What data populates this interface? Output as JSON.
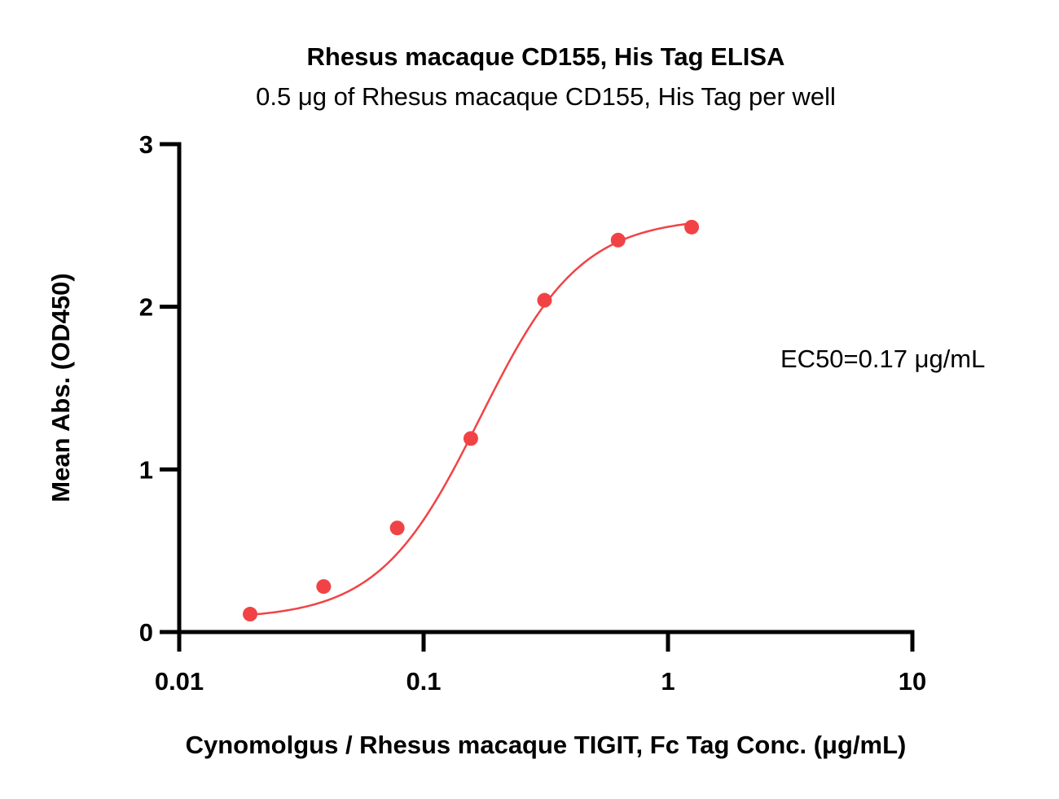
{
  "chart_data": {
    "type": "scatter",
    "title": "Rhesus macaque CD155, His Tag ELISA",
    "subtitle": "0.5 μg of Rhesus macaque CD155, His Tag per well",
    "xlabel": "Cynomolgus / Rhesus macaque TIGIT, Fc Tag Conc. (μg/mL)",
    "ylabel": "Mean Abs. (OD450)",
    "xscale": "log",
    "xlim": [
      0.01,
      10
    ],
    "ylim": [
      0,
      3
    ],
    "x_ticks": [
      0.01,
      0.1,
      1,
      10
    ],
    "x_tick_labels": [
      "0.01",
      "0.1",
      "1",
      "10"
    ],
    "y_ticks": [
      0,
      1,
      2,
      3
    ],
    "y_tick_labels": [
      "0",
      "1",
      "2",
      "3"
    ],
    "grid": false,
    "legend": "none",
    "color": "#f14345",
    "series": [
      {
        "x": [
          0.0195,
          0.039,
          0.078,
          0.156,
          0.3125,
          0.625,
          1.25
        ],
        "y": [
          0.11,
          0.28,
          0.64,
          1.19,
          2.04,
          2.41,
          2.49
        ]
      }
    ],
    "fit": {
      "model": "4PL",
      "bottom": 0.08,
      "top": 2.55,
      "ec50": 0.17,
      "hill": 2.1
    },
    "annotations": [
      "EC50=0.17 μg/mL"
    ]
  }
}
